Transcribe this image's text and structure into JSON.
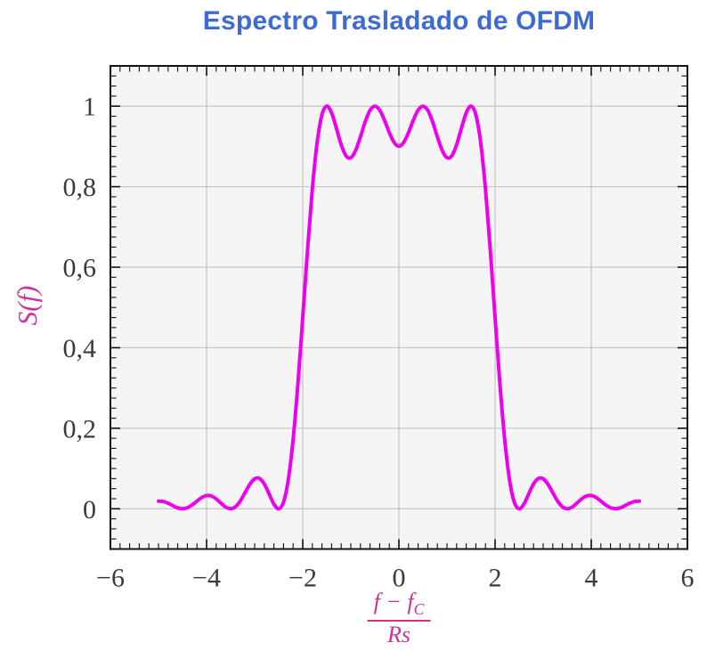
{
  "chart_data": {
    "type": "line",
    "title": "Espectro Trasladado de OFDM",
    "ylabel": "S(f)",
    "xlabel": {
      "num_pre": "f − f",
      "num_sub": "C",
      "den": "Rs",
      "reading": "(f − f_C) / Rs"
    },
    "xlim": [
      -6,
      6
    ],
    "ylim": [
      -0.1,
      1.1
    ],
    "grid": true,
    "legend": "none",
    "x_major_ticks": [
      -6,
      -4,
      -2,
      0,
      2,
      4,
      6
    ],
    "x_tick_labels": [
      "−6",
      "−4",
      "−2",
      "0",
      "2",
      "4",
      "6"
    ],
    "y_major_ticks": [
      0,
      0.2,
      0.4,
      0.6,
      0.8,
      1
    ],
    "y_tick_labels": [
      "0",
      "0,2",
      "0,4",
      "0,6",
      "0,8",
      "1"
    ],
    "x_minor_step": 0.2,
    "x_major_step": 2,
    "y_minor_step": 0.025,
    "y_major_step": 0.2,
    "colors": {
      "title": "#3d6bd3",
      "axis_labels": "#cc3399",
      "grid": "#c9c9c9",
      "plot_bg": "#f5f5f5",
      "frame": "#111111",
      "tick_labels": "#3a3a3a"
    },
    "series": [
      {
        "name": "S(f)",
        "color": "#ee00ee",
        "x_start": -5,
        "x_step": 0.1,
        "values": [
          0.019,
          0.018,
          0.0137,
          0.0076,
          0.0022,
          0,
          0.0025,
          0.0094,
          0.019,
          0.0279,
          0.0328,
          0.0317,
          0.0246,
          0.0139,
          0.0041,
          0,
          0.0049,
          0.0192,
          0.0399,
          0.0608,
          0.0745,
          0.0753,
          0.0615,
          0.0369,
          0.0118,
          0,
          0.0164,
          0.0724,
          0.1722,
          0.311,
          0.4748,
          0.6434,
          0.7947,
          0.9101,
          0.9787,
          1,
          0.9833,
          0.9451,
          0.9042,
          0.8767,
          0.8718,
          0.89,
          0.924,
          0.9614,
          0.9897,
          1,
          0.9902,
          0.9649,
          0.9344,
          0.9099,
          0.9006,
          0.9099,
          0.9344,
          0.9649,
          0.9902,
          1,
          0.9897,
          0.9614,
          0.924,
          0.89,
          0.8718,
          0.8767,
          0.9042,
          0.9451,
          0.9833,
          1,
          0.9787,
          0.9101,
          0.7947,
          0.6434,
          0.4748,
          0.311,
          0.1722,
          0.0724,
          0.0164,
          0,
          0.0118,
          0.0369,
          0.0615,
          0.0753,
          0.0745,
          0.0608,
          0.0399,
          0.0192,
          0.0049,
          0,
          0.0041,
          0.0139,
          0.0246,
          0.0317,
          0.0328,
          0.0279,
          0.019,
          0.0094,
          0.0025,
          0,
          0.0022,
          0.0076,
          0.0137,
          0.018,
          0.019
        ]
      }
    ]
  }
}
